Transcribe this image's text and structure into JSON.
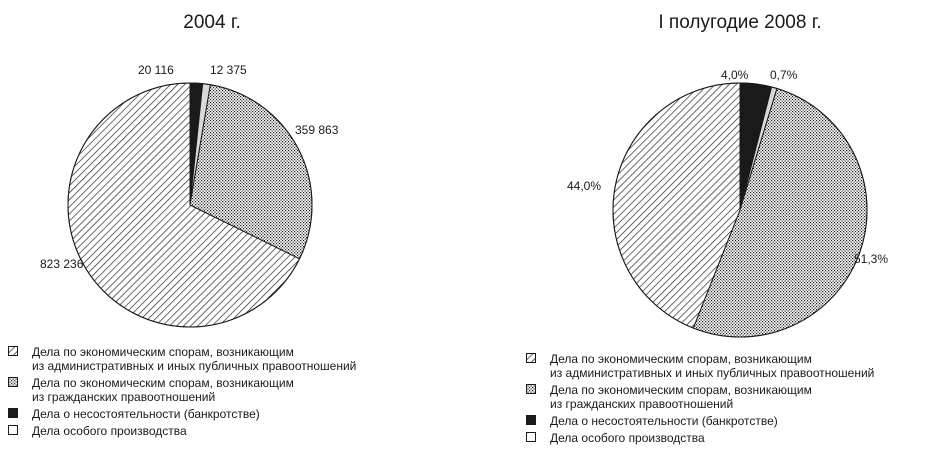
{
  "chart_data": [
    {
      "type": "pie",
      "title": "2004 г.",
      "categories": [
        "Дела по экономическим спорам, возникающим\nиз административных и иных публичных правоотношений",
        "Дела по экономическим спорам, возникающим\nиз гражданских правоотношений",
        "Дела о несостоятельности (банкротстве)",
        "Дела особого производства"
      ],
      "values": [
        823236,
        359863,
        20116,
        12375
      ],
      "labels": [
        "823 236",
        "359 863",
        "20 116",
        "12 375"
      ],
      "fills": [
        "diagonal-hatch",
        "dense-dot-hatch",
        "solid-black",
        "light-gray"
      ],
      "legend": "bottom"
    },
    {
      "type": "pie",
      "title": "I полугодие 2008 г.",
      "categories": [
        "Дела по экономическим спорам, возникающим\nиз административных и иных публичных правоотношений",
        "Дела по экономическим спорам, возникающим\nиз гражданских правоотношений",
        "Дела о несостоятельности (банкротстве)",
        "Дела особого производства"
      ],
      "values": [
        44.0,
        51.3,
        4.0,
        0.7
      ],
      "labels": [
        "44,0%",
        "51,3%",
        "4,0%",
        "0,7%"
      ],
      "fills": [
        "diagonal-hatch",
        "dense-dot-hatch",
        "solid-black",
        "light-gray"
      ],
      "legend": "bottom"
    }
  ],
  "colors": {
    "ink": "#1a1a1a",
    "light": "#d9d9d9",
    "background": "#ffffff"
  }
}
